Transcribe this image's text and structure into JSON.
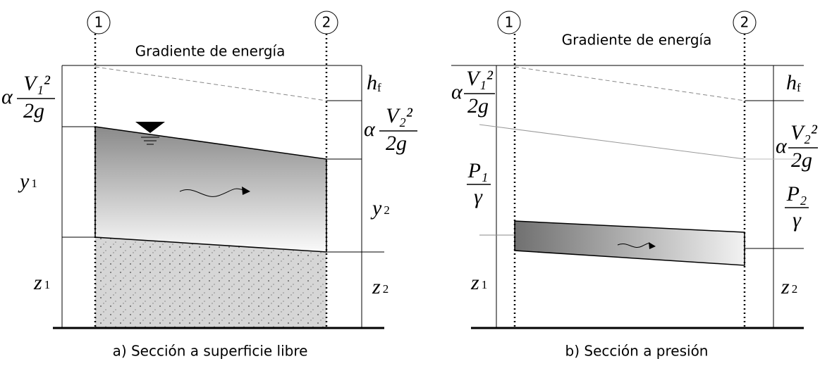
{
  "panels": [
    {
      "markers": [
        "1",
        "2"
      ],
      "energy_gradient": "Gradiente de energía",
      "velocity_head_1": {
        "alpha": "α",
        "numerator": "V₁²",
        "denominator": "2g"
      },
      "head_loss": {
        "base": "h",
        "sub": "f"
      },
      "velocity_head_2": {
        "alpha": "α",
        "numerator": "V₂²",
        "denominator": "2g"
      },
      "depth_1": {
        "base": "y",
        "sub": "1"
      },
      "depth_2": {
        "base": "y",
        "sub": "2"
      },
      "elevation_1": {
        "base": "z",
        "sub": "1"
      },
      "elevation_2": {
        "base": "z",
        "sub": "2"
      },
      "caption": "a) Sección a superficie libre"
    },
    {
      "markers": [
        "1",
        "2"
      ],
      "energy_gradient": "Gradiente de energía",
      "velocity_head_1": {
        "alpha": "α",
        "numerator": "V₁²",
        "denominator": "2g"
      },
      "head_loss": {
        "base": "h",
        "sub": "f"
      },
      "velocity_head_2": {
        "alpha": "α",
        "numerator": "V₂²",
        "denominator": "2g"
      },
      "pressure_head_1": {
        "numerator": "P₁",
        "denominator": "γ"
      },
      "pressure_head_2": {
        "numerator": "P₂",
        "denominator": "γ"
      },
      "elevation_1": {
        "base": "z",
        "sub": "1"
      },
      "elevation_2": {
        "base": "z",
        "sub": "2"
      },
      "caption": "b) Sección a presión"
    }
  ]
}
